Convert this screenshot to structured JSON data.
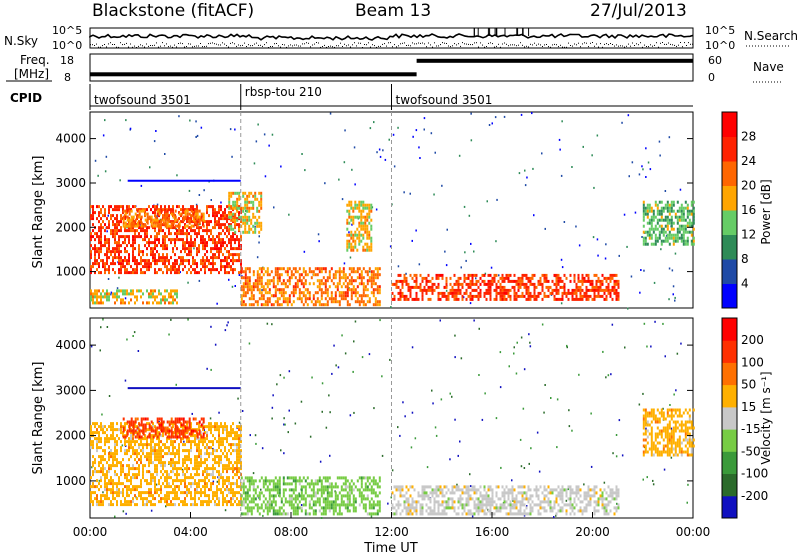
{
  "header": {
    "title": "Blackstone (fitACF)",
    "beam": "Beam 13",
    "date": "27/Jul/2013"
  },
  "top_panels": {
    "nsky_label": "N.Sky",
    "nsearch_label": "N.Search",
    "nsky_ticks": [
      "10^5",
      "10^0"
    ],
    "nsearch_ticks": [
      "10^5",
      "10^0"
    ],
    "freq_label_line1": "Freq.",
    "freq_label_line2": "[MHz]",
    "freq_ticks": [
      "18",
      "8"
    ],
    "nave_label": "Nave",
    "nave_ticks": [
      "60",
      "0"
    ],
    "cpid_label": "CPID",
    "cpid_segments": [
      {
        "label": "twofsound 3501",
        "start_hour": 0,
        "end_hour": 6
      },
      {
        "label": "rbsp-tou 210",
        "start_hour": 6,
        "end_hour": 12
      },
      {
        "label": "twofsound 3501",
        "start_hour": 12,
        "end_hour": 24
      }
    ],
    "freq_series": [
      {
        "from_hour": 0,
        "to_hour": 13,
        "mhz": 10.5
      },
      {
        "from_hour": 13,
        "to_hour": 24,
        "mhz": 15.5
      }
    ]
  },
  "chart_data": [
    {
      "type": "heatmap",
      "name": "Power",
      "ylabel": "Slant Range [km]",
      "xlim": [
        0,
        24
      ],
      "ylim": [
        180,
        4600
      ],
      "yticks": [
        "1000",
        "2000",
        "3000",
        "4000"
      ],
      "colorbar": {
        "label": "Power [dB]",
        "ticks": [
          "4",
          "8",
          "12",
          "16",
          "20",
          "24",
          "28"
        ],
        "colors": [
          "#0000ff",
          "#1f4aa6",
          "#2e8b57",
          "#66cc66",
          "#ffa500",
          "#ff6600",
          "#ff2200",
          "#ff0000"
        ]
      },
      "echo_regions": [
        {
          "start_hour": 0.0,
          "end_hour": 6.0,
          "range_start_km": 1000,
          "range_end_km": 2500,
          "power_db": 22
        },
        {
          "start_hour": 0.0,
          "end_hour": 3.5,
          "range_start_km": 300,
          "range_end_km": 600,
          "power_db": 14
        },
        {
          "start_hour": 1.3,
          "end_hour": 4.5,
          "range_start_km": 2000,
          "range_end_km": 2400,
          "power_db": 18
        },
        {
          "start_hour": 5.5,
          "end_hour": 6.8,
          "range_start_km": 1900,
          "range_end_km": 2800,
          "power_db": 16
        },
        {
          "start_hour": 6.0,
          "end_hour": 11.5,
          "range_start_km": 250,
          "range_end_km": 1100,
          "power_db": 20
        },
        {
          "start_hour": 10.2,
          "end_hour": 11.2,
          "range_start_km": 1500,
          "range_end_km": 2600,
          "power_db": 14
        },
        {
          "start_hour": 12.0,
          "end_hour": 21.0,
          "range_start_km": 350,
          "range_end_km": 950,
          "power_db": 24
        },
        {
          "start_hour": 22.0,
          "end_hour": 24.0,
          "range_start_km": 1600,
          "range_end_km": 2600,
          "power_db": 12
        }
      ]
    },
    {
      "type": "heatmap",
      "name": "Velocity",
      "ylabel": "Slant Range [km]",
      "xlim": [
        0,
        24
      ],
      "ylim": [
        180,
        4600
      ],
      "yticks": [
        "1000",
        "2000",
        "3000",
        "4000"
      ],
      "xticks": [
        "00:00",
        "04:00",
        "08:00",
        "12:00",
        "16:00",
        "20:00",
        "00:00"
      ],
      "xlabel": "Time UT",
      "colorbar": {
        "label": "Velocity [m s⁻¹]",
        "ticks": [
          "200",
          "100",
          "50",
          "15",
          "-15",
          "-50",
          "-100",
          "-200"
        ],
        "colors": [
          "#1010c0",
          "#2b6b2b",
          "#3a9a3a",
          "#77cc44",
          "#c8c8c8",
          "#ffb000",
          "#ff7000",
          "#ff3000",
          "#ff0000"
        ]
      },
      "echo_regions": [
        {
          "start_hour": 0.0,
          "end_hour": 6.0,
          "range_start_km": 500,
          "range_end_km": 2300,
          "velocity": -15
        },
        {
          "start_hour": 1.3,
          "end_hour": 4.5,
          "range_start_km": 2000,
          "range_end_km": 2400,
          "velocity": -150
        },
        {
          "start_hour": 6.0,
          "end_hour": 11.5,
          "range_start_km": 250,
          "range_end_km": 1100,
          "velocity": 20
        },
        {
          "start_hour": 12.0,
          "end_hour": 21.0,
          "range_start_km": 300,
          "range_end_km": 900,
          "velocity": -10
        },
        {
          "start_hour": 22.0,
          "end_hour": 24.0,
          "range_start_km": 1600,
          "range_end_km": 2600,
          "velocity": -15
        }
      ]
    }
  ]
}
